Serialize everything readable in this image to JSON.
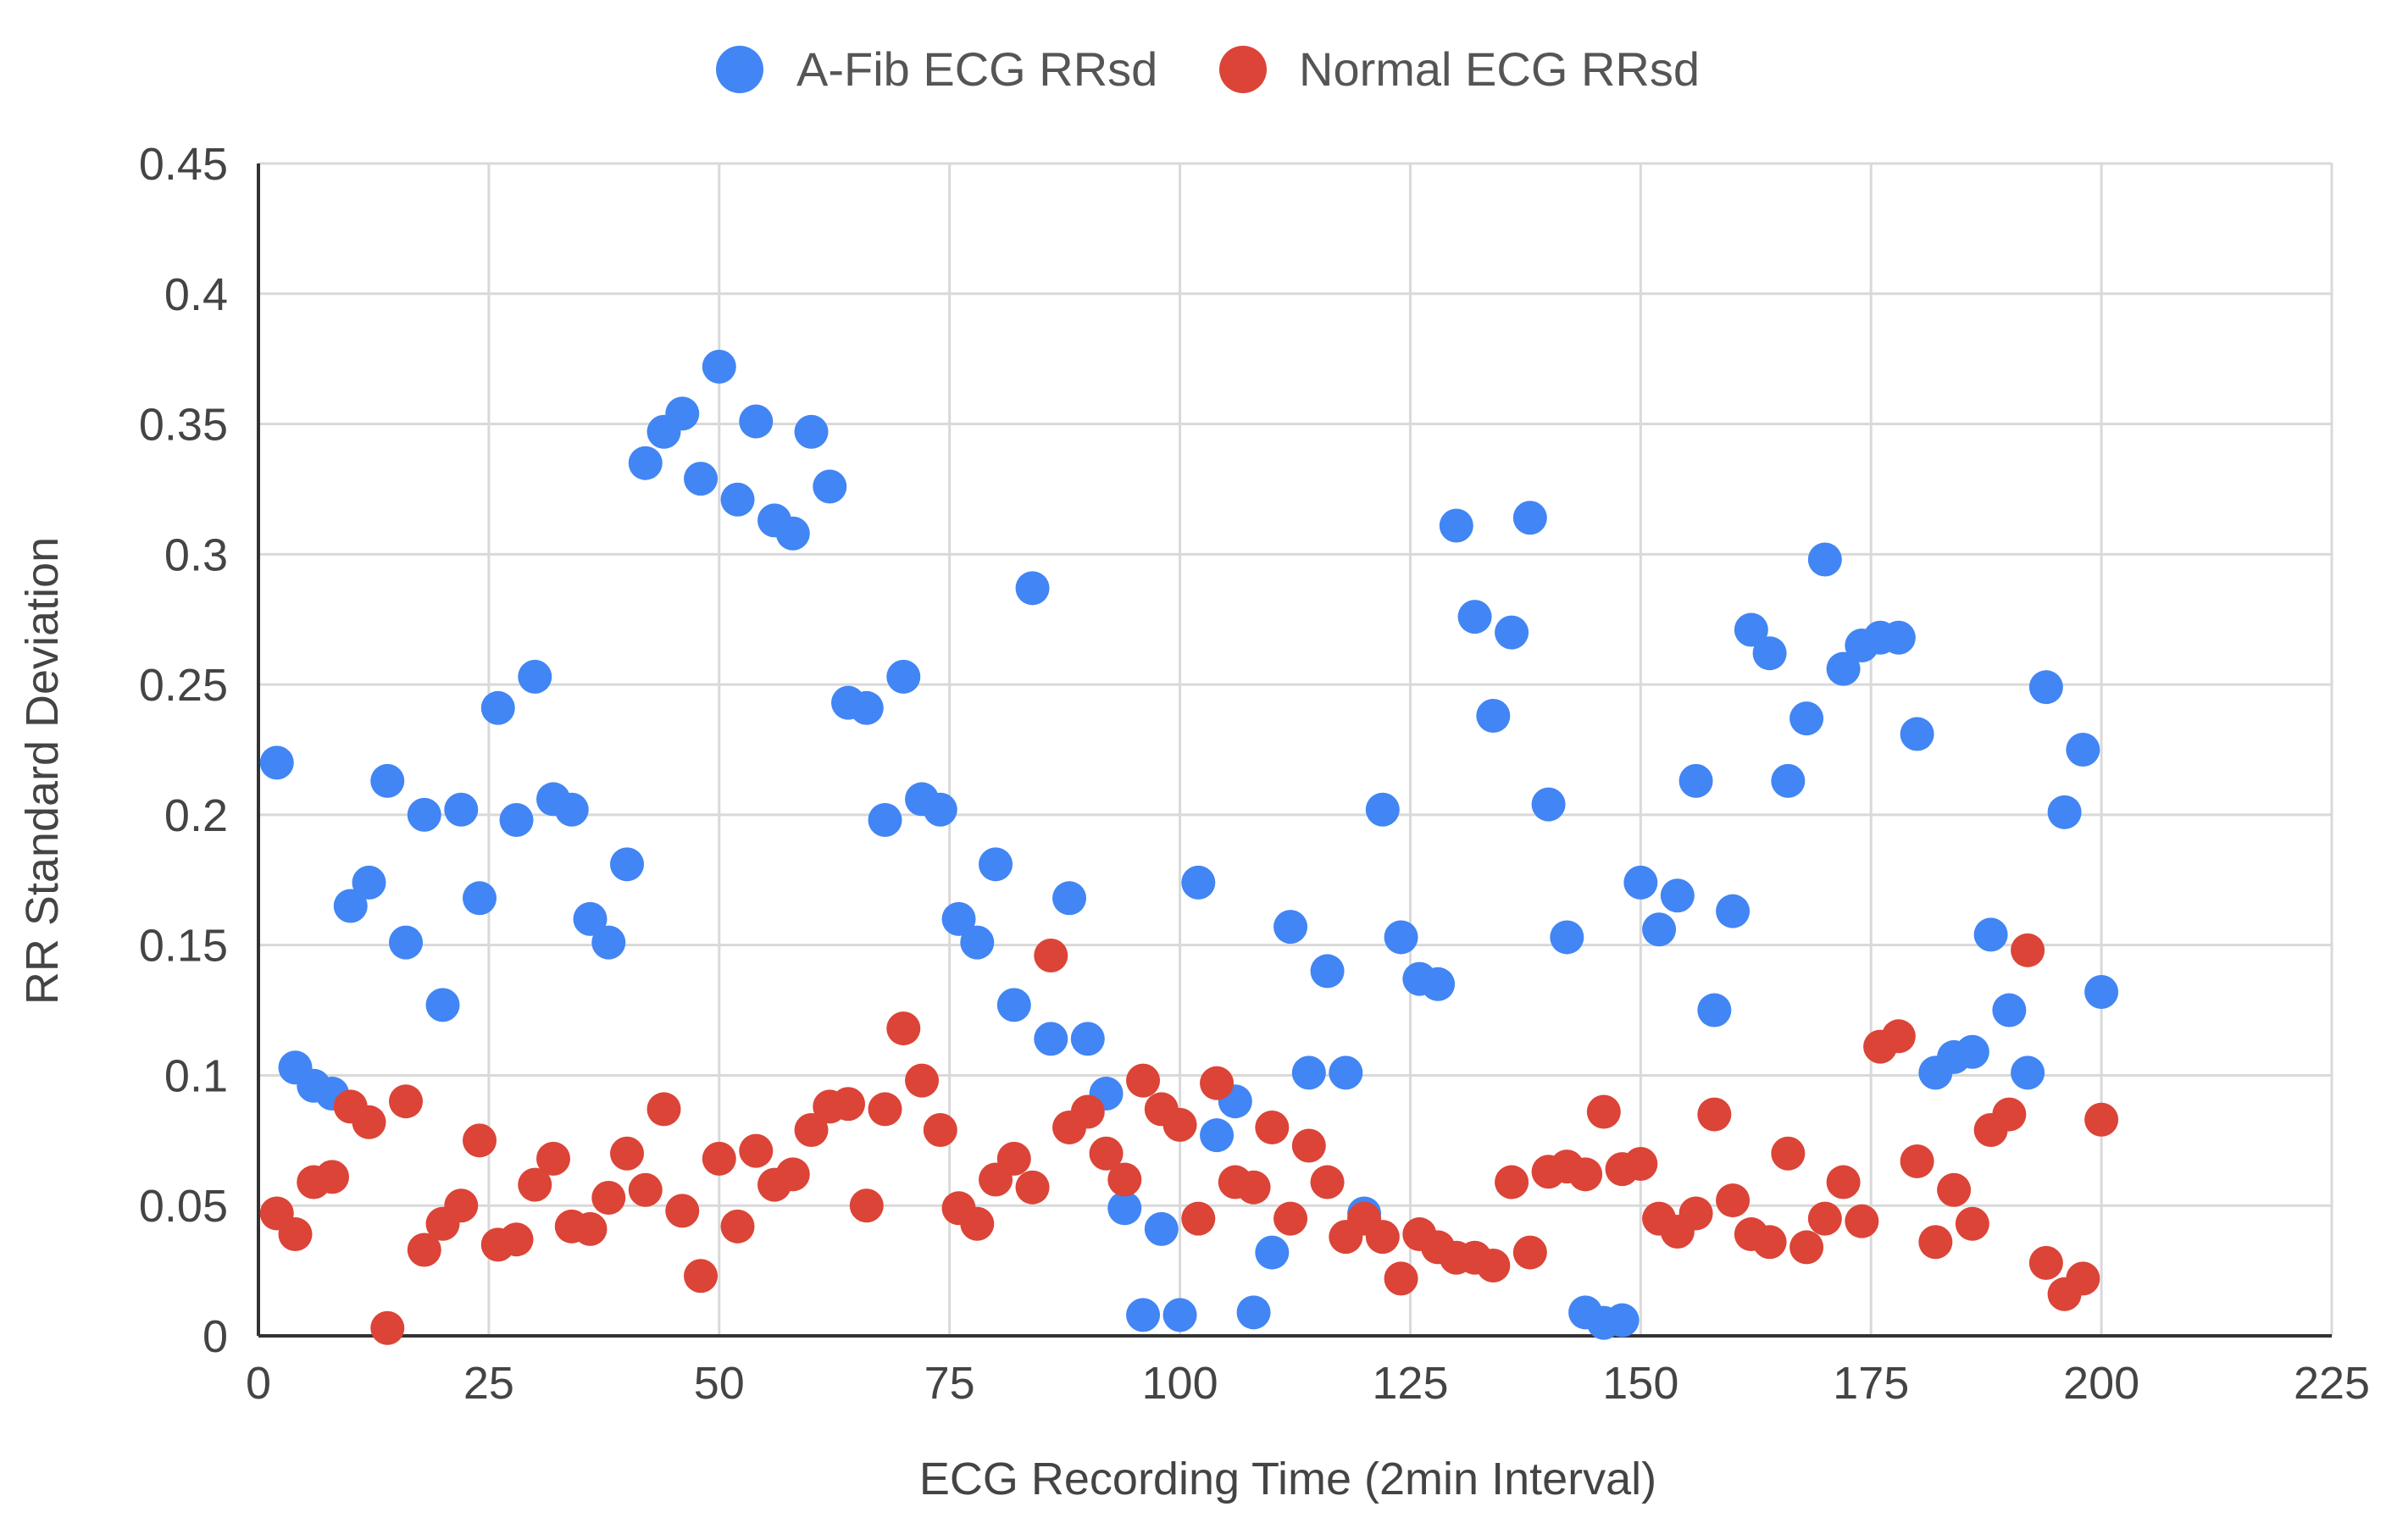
{
  "chart_data": {
    "type": "scatter",
    "title": "",
    "xlabel": "ECG Recording Time (2min Interval)",
    "ylabel": "RR Standard Deviation",
    "xlim": [
      0,
      225
    ],
    "ylim": [
      0,
      0.45
    ],
    "xticks": [
      0,
      25,
      50,
      75,
      100,
      125,
      150,
      175,
      200,
      225
    ],
    "yticks": [
      0,
      0.05,
      0.1,
      0.15,
      0.2,
      0.25,
      0.3,
      0.35,
      0.4,
      0.45
    ],
    "xtick_labels": [
      "0",
      "25",
      "50",
      "75",
      "100",
      "125",
      "150",
      "175",
      "200",
      "225"
    ],
    "ytick_labels": [
      "0",
      "0.05",
      "0.1",
      "0.15",
      "0.2",
      "0.25",
      "0.3",
      "0.35",
      "0.4",
      "0.45"
    ],
    "grid": true,
    "legend_position": "top-center",
    "series": [
      {
        "name": "A-Fib ECG RRsd",
        "color": "#4285F4",
        "points": [
          [
            2,
            0.22
          ],
          [
            4,
            0.103
          ],
          [
            6,
            0.096
          ],
          [
            8,
            0.093
          ],
          [
            10,
            0.165
          ],
          [
            12,
            0.174
          ],
          [
            14,
            0.213
          ],
          [
            16,
            0.151
          ],
          [
            18,
            0.2
          ],
          [
            20,
            0.127
          ],
          [
            22,
            0.202
          ],
          [
            24,
            0.168
          ],
          [
            26,
            0.241
          ],
          [
            28,
            0.198
          ],
          [
            30,
            0.253
          ],
          [
            32,
            0.206
          ],
          [
            34,
            0.202
          ],
          [
            36,
            0.16
          ],
          [
            38,
            0.151
          ],
          [
            40,
            0.181
          ],
          [
            42,
            0.335
          ],
          [
            44,
            0.347
          ],
          [
            46,
            0.354
          ],
          [
            48,
            0.329
          ],
          [
            50,
            0.372
          ],
          [
            52,
            0.321
          ],
          [
            54,
            0.351
          ],
          [
            56,
            0.313
          ],
          [
            58,
            0.308
          ],
          [
            60,
            0.347
          ],
          [
            62,
            0.326
          ],
          [
            64,
            0.243
          ],
          [
            66,
            0.241
          ],
          [
            68,
            0.198
          ],
          [
            70,
            0.253
          ],
          [
            72,
            0.206
          ],
          [
            74,
            0.202
          ],
          [
            76,
            0.16
          ],
          [
            78,
            0.151
          ],
          [
            80,
            0.181
          ],
          [
            82,
            0.127
          ],
          [
            84,
            0.287
          ],
          [
            86,
            0.114
          ],
          [
            88,
            0.168
          ],
          [
            90,
            0.114
          ],
          [
            92,
            0.093
          ],
          [
            94,
            0.049
          ],
          [
            96,
            0.008
          ],
          [
            98,
            0.041
          ],
          [
            100,
            0.008
          ],
          [
            102,
            0.174
          ],
          [
            104,
            0.077
          ],
          [
            106,
            0.09
          ],
          [
            108,
            0.009
          ],
          [
            110,
            0.032
          ],
          [
            112,
            0.157
          ],
          [
            114,
            0.101
          ],
          [
            116,
            0.14
          ],
          [
            118,
            0.101
          ],
          [
            120,
            0.047
          ],
          [
            122,
            0.202
          ],
          [
            124,
            0.153
          ],
          [
            126,
            0.137
          ],
          [
            128,
            0.135
          ],
          [
            130,
            0.311
          ],
          [
            132,
            0.276
          ],
          [
            134,
            0.238
          ],
          [
            136,
            0.27
          ],
          [
            138,
            0.314
          ],
          [
            140,
            0.204
          ],
          [
            142,
            0.153
          ],
          [
            144,
            0.009
          ],
          [
            146,
            0.005
          ],
          [
            148,
            0.006
          ],
          [
            150,
            0.174
          ],
          [
            152,
            0.156
          ],
          [
            154,
            0.169
          ],
          [
            156,
            0.213
          ],
          [
            158,
            0.125
          ],
          [
            160,
            0.163
          ],
          [
            162,
            0.271
          ],
          [
            164,
            0.262
          ],
          [
            166,
            0.213
          ],
          [
            168,
            0.237
          ],
          [
            170,
            0.298
          ],
          [
            172,
            0.256
          ],
          [
            174,
            0.265
          ],
          [
            176,
            0.268
          ],
          [
            178,
            0.268
          ],
          [
            180,
            0.231
          ],
          [
            182,
            0.101
          ],
          [
            184,
            0.107
          ],
          [
            186,
            0.109
          ],
          [
            188,
            0.154
          ],
          [
            190,
            0.125
          ],
          [
            192,
            0.101
          ],
          [
            194,
            0.249
          ],
          [
            196,
            0.201
          ],
          [
            198,
            0.225
          ],
          [
            200,
            0.132
          ]
        ]
      },
      {
        "name": "Normal ECG RRsd",
        "color": "#DB4437",
        "points": [
          [
            2,
            0.047
          ],
          [
            4,
            0.039
          ],
          [
            6,
            0.059
          ],
          [
            8,
            0.061
          ],
          [
            10,
            0.088
          ],
          [
            12,
            0.082
          ],
          [
            14,
            0.003
          ],
          [
            16,
            0.09
          ],
          [
            18,
            0.033
          ],
          [
            20,
            0.043
          ],
          [
            22,
            0.05
          ],
          [
            24,
            0.075
          ],
          [
            26,
            0.035
          ],
          [
            28,
            0.037
          ],
          [
            30,
            0.058
          ],
          [
            32,
            0.068
          ],
          [
            34,
            0.042
          ],
          [
            36,
            0.041
          ],
          [
            38,
            0.053
          ],
          [
            40,
            0.07
          ],
          [
            42,
            0.056
          ],
          [
            44,
            0.087
          ],
          [
            46,
            0.048
          ],
          [
            48,
            0.023
          ],
          [
            50,
            0.068
          ],
          [
            52,
            0.042
          ],
          [
            54,
            0.071
          ],
          [
            56,
            0.058
          ],
          [
            58,
            0.062
          ],
          [
            60,
            0.079
          ],
          [
            62,
            0.088
          ],
          [
            64,
            0.089
          ],
          [
            66,
            0.05
          ],
          [
            68,
            0.087
          ],
          [
            70,
            0.118
          ],
          [
            72,
            0.098
          ],
          [
            74,
            0.079
          ],
          [
            76,
            0.049
          ],
          [
            78,
            0.043
          ],
          [
            80,
            0.06
          ],
          [
            82,
            0.068
          ],
          [
            84,
            0.057
          ],
          [
            86,
            0.146
          ],
          [
            88,
            0.08
          ],
          [
            90,
            0.086
          ],
          [
            92,
            0.07
          ],
          [
            94,
            0.06
          ],
          [
            96,
            0.098
          ],
          [
            98,
            0.087
          ],
          [
            100,
            0.081
          ],
          [
            102,
            0.045
          ],
          [
            104,
            0.097
          ],
          [
            106,
            0.059
          ],
          [
            108,
            0.057
          ],
          [
            110,
            0.08
          ],
          [
            112,
            0.045
          ],
          [
            114,
            0.073
          ],
          [
            116,
            0.059
          ],
          [
            118,
            0.038
          ],
          [
            120,
            0.045
          ],
          [
            122,
            0.038
          ],
          [
            124,
            0.022
          ],
          [
            126,
            0.039
          ],
          [
            128,
            0.034
          ],
          [
            130,
            0.03
          ],
          [
            132,
            0.03
          ],
          [
            134,
            0.027
          ],
          [
            136,
            0.059
          ],
          [
            138,
            0.032
          ],
          [
            140,
            0.063
          ],
          [
            142,
            0.065
          ],
          [
            144,
            0.062
          ],
          [
            146,
            0.086
          ],
          [
            148,
            0.064
          ],
          [
            150,
            0.066
          ],
          [
            152,
            0.045
          ],
          [
            154,
            0.04
          ],
          [
            156,
            0.047
          ],
          [
            158,
            0.085
          ],
          [
            160,
            0.052
          ],
          [
            162,
            0.039
          ],
          [
            164,
            0.036
          ],
          [
            166,
            0.07
          ],
          [
            168,
            0.034
          ],
          [
            170,
            0.045
          ],
          [
            172,
            0.059
          ],
          [
            174,
            0.044
          ],
          [
            176,
            0.111
          ],
          [
            178,
            0.115
          ],
          [
            180,
            0.067
          ],
          [
            182,
            0.036
          ],
          [
            184,
            0.056
          ],
          [
            186,
            0.043
          ],
          [
            188,
            0.079
          ],
          [
            190,
            0.085
          ],
          [
            192,
            0.148
          ],
          [
            194,
            0.028
          ],
          [
            196,
            0.016
          ],
          [
            198,
            0.022
          ],
          [
            200,
            0.083
          ]
        ]
      }
    ]
  }
}
